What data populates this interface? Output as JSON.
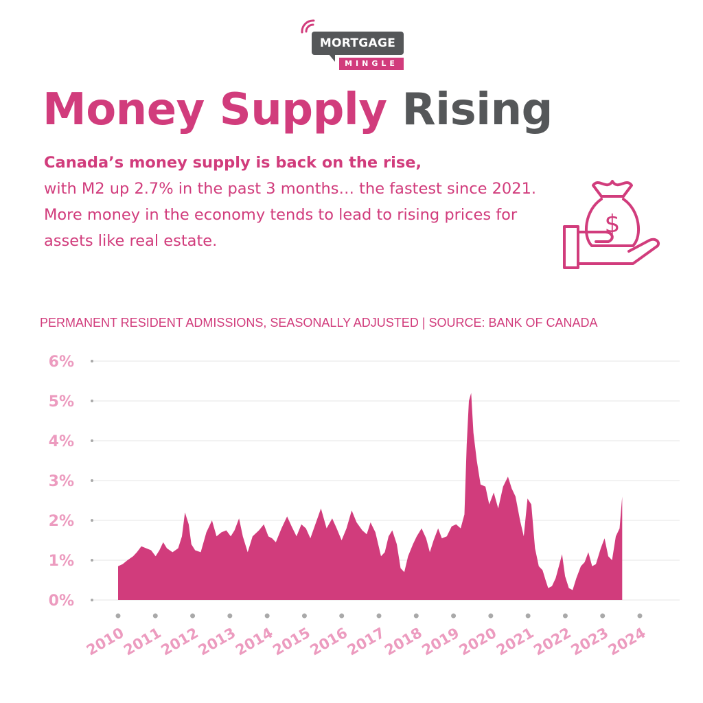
{
  "brand": {
    "name": "MORTGAGE",
    "sub": "MINGLE",
    "color": "#d13c7c",
    "dark": "#555759"
  },
  "header": {
    "title_main": "Money Supply",
    "title_accent": "Rising",
    "lead": "Canada’s money supply is back on the rise,",
    "body": "with M2 up 2.7% in the past 3 months… the fastest since 2021. More money in the economy tends to lead to rising prices for assets like real estate.",
    "icon": "money-bag-hand-icon"
  },
  "chart_data": {
    "type": "area",
    "caption": "PERMANENT RESIDENT ADMISSIONS, SEASONALLY ADJUSTED | SOURCE: BANK OF CANADA",
    "x_tick_labels": [
      "2010",
      "2011",
      "2012",
      "2013",
      "2014",
      "2015",
      "2016",
      "2017",
      "2018",
      "2019",
      "2020",
      "2021",
      "2022",
      "2023",
      "2024"
    ],
    "y_tick_labels": [
      "0%",
      "1%",
      "2%",
      "3%",
      "4%",
      "5%",
      "6%"
    ],
    "ylim": [
      0,
      6
    ],
    "xlim": [
      2010.0,
      2024.95
    ],
    "grid": true,
    "color": "#d13c7c",
    "points": [
      [
        2010.0,
        0.85
      ],
      [
        2010.12,
        0.9
      ],
      [
        2010.25,
        1.0
      ],
      [
        2010.4,
        1.1
      ],
      [
        2010.5,
        1.2
      ],
      [
        2010.62,
        1.35
      ],
      [
        2010.75,
        1.3
      ],
      [
        2010.88,
        1.25
      ],
      [
        2011.0,
        1.1
      ],
      [
        2011.1,
        1.25
      ],
      [
        2011.2,
        1.45
      ],
      [
        2011.3,
        1.3
      ],
      [
        2011.45,
        1.2
      ],
      [
        2011.6,
        1.3
      ],
      [
        2011.7,
        1.6
      ],
      [
        2011.78,
        2.2
      ],
      [
        2011.88,
        1.9
      ],
      [
        2011.95,
        1.4
      ],
      [
        2012.05,
        1.25
      ],
      [
        2012.2,
        1.2
      ],
      [
        2012.35,
        1.7
      ],
      [
        2012.5,
        2.0
      ],
      [
        2012.62,
        1.6
      ],
      [
        2012.75,
        1.7
      ],
      [
        2012.88,
        1.75
      ],
      [
        2013.0,
        1.6
      ],
      [
        2013.1,
        1.75
      ],
      [
        2013.22,
        2.05
      ],
      [
        2013.32,
        1.6
      ],
      [
        2013.45,
        1.2
      ],
      [
        2013.58,
        1.6
      ],
      [
        2013.75,
        1.75
      ],
      [
        2013.88,
        1.9
      ],
      [
        2014.0,
        1.6
      ],
      [
        2014.1,
        1.55
      ],
      [
        2014.2,
        1.45
      ],
      [
        2014.35,
        1.8
      ],
      [
        2014.5,
        2.1
      ],
      [
        2014.62,
        1.85
      ],
      [
        2014.75,
        1.6
      ],
      [
        2014.88,
        1.9
      ],
      [
        2015.0,
        1.8
      ],
      [
        2015.12,
        1.55
      ],
      [
        2015.25,
        1.9
      ],
      [
        2015.4,
        2.3
      ],
      [
        2015.55,
        1.8
      ],
      [
        2015.7,
        2.05
      ],
      [
        2015.82,
        1.8
      ],
      [
        2015.95,
        1.5
      ],
      [
        2016.08,
        1.8
      ],
      [
        2016.22,
        2.25
      ],
      [
        2016.35,
        1.95
      ],
      [
        2016.5,
        1.75
      ],
      [
        2016.62,
        1.65
      ],
      [
        2016.72,
        1.95
      ],
      [
        2016.85,
        1.7
      ],
      [
        2017.0,
        1.1
      ],
      [
        2017.1,
        1.2
      ],
      [
        2017.2,
        1.6
      ],
      [
        2017.3,
        1.75
      ],
      [
        2017.42,
        1.4
      ],
      [
        2017.52,
        0.8
      ],
      [
        2017.62,
        0.7
      ],
      [
        2017.72,
        1.1
      ],
      [
        2017.85,
        1.4
      ],
      [
        2017.95,
        1.6
      ],
      [
        2018.08,
        1.8
      ],
      [
        2018.2,
        1.55
      ],
      [
        2018.3,
        1.2
      ],
      [
        2018.4,
        1.5
      ],
      [
        2018.52,
        1.8
      ],
      [
        2018.62,
        1.55
      ],
      [
        2018.75,
        1.6
      ],
      [
        2018.88,
        1.85
      ],
      [
        2019.0,
        1.9
      ],
      [
        2019.12,
        1.8
      ],
      [
        2019.22,
        2.15
      ],
      [
        2019.28,
        3.9
      ],
      [
        2019.34,
        5.0
      ],
      [
        2019.4,
        5.2
      ],
      [
        2019.46,
        4.2
      ],
      [
        2019.55,
        3.5
      ],
      [
        2019.65,
        2.9
      ],
      [
        2019.78,
        2.85
      ],
      [
        2019.88,
        2.4
      ],
      [
        2020.0,
        2.7
      ],
      [
        2020.12,
        2.3
      ],
      [
        2020.25,
        2.85
      ],
      [
        2020.38,
        3.1
      ],
      [
        2020.48,
        2.8
      ],
      [
        2020.58,
        2.6
      ],
      [
        2020.7,
        2.0
      ],
      [
        2020.8,
        1.6
      ],
      [
        2020.9,
        2.55
      ],
      [
        2021.0,
        2.4
      ],
      [
        2021.1,
        1.3
      ],
      [
        2021.2,
        0.85
      ],
      [
        2021.3,
        0.75
      ],
      [
        2021.38,
        0.5
      ],
      [
        2021.45,
        0.3
      ],
      [
        2021.55,
        0.35
      ],
      [
        2021.65,
        0.55
      ],
      [
        2021.75,
        0.9
      ],
      [
        2021.82,
        1.15
      ],
      [
        2021.9,
        0.6
      ],
      [
        2022.0,
        0.3
      ],
      [
        2022.1,
        0.25
      ],
      [
        2022.2,
        0.55
      ],
      [
        2022.32,
        0.85
      ],
      [
        2022.42,
        0.95
      ],
      [
        2022.52,
        1.2
      ],
      [
        2022.62,
        0.85
      ],
      [
        2022.72,
        0.9
      ],
      [
        2022.85,
        1.3
      ],
      [
        2022.95,
        1.55
      ],
      [
        2023.05,
        1.1
      ],
      [
        2023.15,
        1.0
      ],
      [
        2023.25,
        1.6
      ],
      [
        2023.35,
        1.8
      ],
      [
        2023.42,
        2.6
      ]
    ]
  }
}
